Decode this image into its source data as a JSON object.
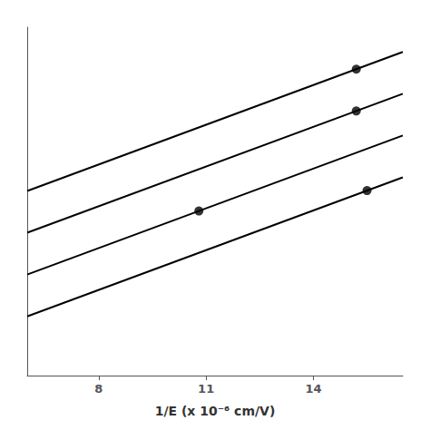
{
  "chart_data": {
    "type": "line",
    "xlabel": "1/E (x 10⁻⁶ cm/V)",
    "xlim": [
      6.0,
      16.5
    ],
    "xticks": [
      8,
      11,
      14
    ],
    "ylim": [
      -1.5,
      8.5
    ],
    "tick_labels": "x",
    "grid": false,
    "series": [
      {
        "type": "line",
        "color": "#000000",
        "x": [
          6.0,
          16.5
        ],
        "values": [
          3.8,
          7.79
        ]
      },
      {
        "type": "line",
        "color": "#000000",
        "x": [
          6.0,
          16.5
        ],
        "values": [
          2.6,
          6.59
        ]
      },
      {
        "type": "line",
        "color": "#000000",
        "x": [
          6.0,
          16.5
        ],
        "values": [
          1.4,
          5.39
        ]
      },
      {
        "type": "line",
        "color": "#000000",
        "x": [
          6.0,
          16.5
        ],
        "values": [
          0.2,
          4.19
        ]
      },
      {
        "type": "scatter",
        "color": "#000000",
        "marker": "circle",
        "x": [
          15.2,
          15.2,
          10.8,
          15.5
        ],
        "values": [
          7.296,
          6.096,
          3.224,
          3.81
        ]
      }
    ]
  }
}
